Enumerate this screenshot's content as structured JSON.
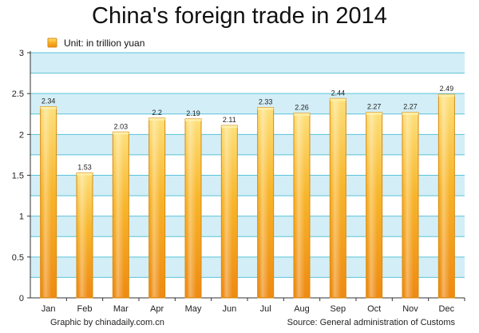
{
  "page": {
    "credit": "Graphic by chinadaily.com.cn",
    "source": "Source: General administration of Customs"
  },
  "colors": {
    "band": "#d3eef6",
    "gridline": "#5bc3d9",
    "bar_top": "#fde07a",
    "bar_mid": "#f8b52a",
    "bar_bottom": "#ee8a12",
    "bar_border": "#d98a10",
    "axis": "#333333"
  },
  "chart_data": {
    "type": "bar",
    "title": "China's foreign trade in 2014",
    "legend": {
      "label": "Unit: in trillion yuan",
      "placement": "top-left"
    },
    "categories": [
      "Jan",
      "Feb",
      "Mar",
      "Apr",
      "May",
      "Jun",
      "Jul",
      "Aug",
      "Sep",
      "Oct",
      "Nov",
      "Dec"
    ],
    "values": [
      2.34,
      1.53,
      2.03,
      2.2,
      2.19,
      2.11,
      2.33,
      2.26,
      2.44,
      2.27,
      2.27,
      2.49
    ],
    "value_labels": [
      "2.34",
      "1.53",
      "2.03",
      "2.2",
      "2.19",
      "2.11",
      "2.33",
      "2.26",
      "2.44",
      "2.27",
      "2.27",
      "2.49"
    ],
    "ylim": [
      0,
      3
    ],
    "yticks": [
      0,
      0.5,
      1,
      1.5,
      2,
      2.5,
      3
    ],
    "ytick_labels": [
      "0",
      "0.5",
      "1",
      "1.5",
      "2",
      "2.5",
      "3"
    ],
    "grid": true,
    "xlabel": "",
    "ylabel": ""
  }
}
